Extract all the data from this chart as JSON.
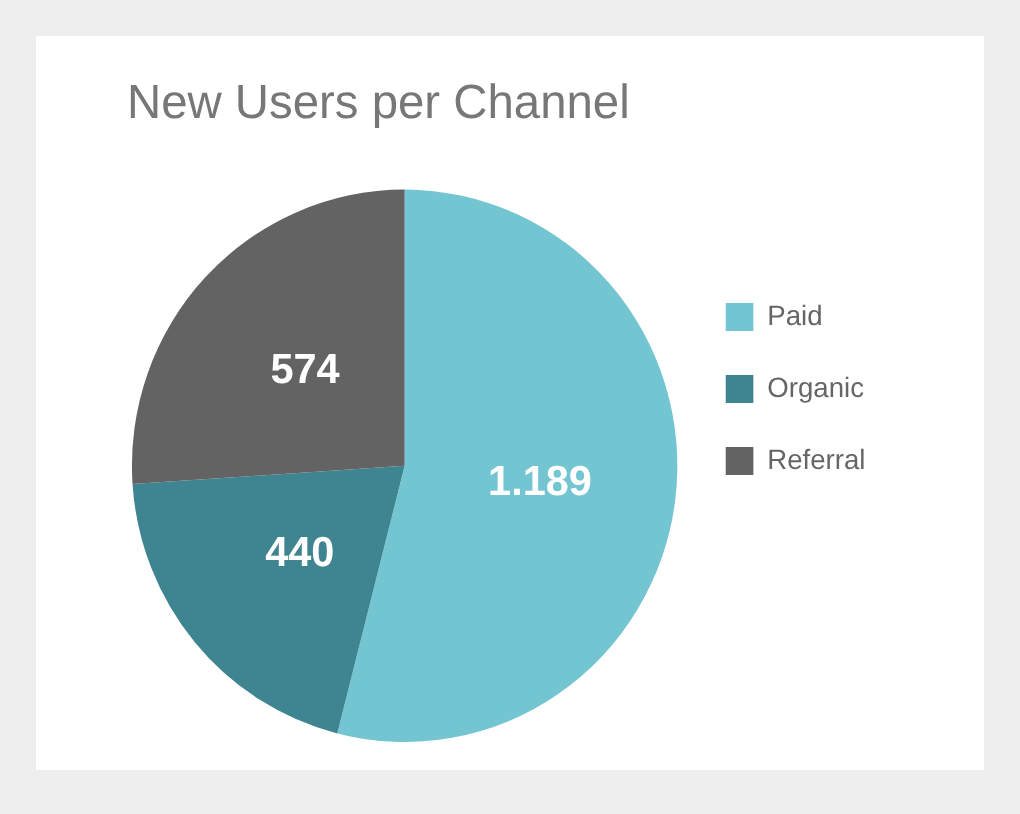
{
  "chart_data": {
    "type": "pie",
    "title": "New Users per Channel",
    "categories": [
      "Paid",
      "Organic",
      "Referral"
    ],
    "values": [
      1189,
      440,
      574
    ],
    "value_labels": [
      "1.189",
      "440",
      "574"
    ],
    "colors": [
      "#74c5d2",
      "#3e8591",
      "#636363"
    ],
    "legend": "right"
  }
}
